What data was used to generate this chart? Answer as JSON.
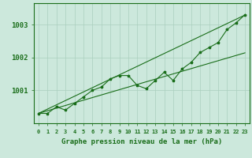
{
  "xlabel": "Graphe pression niveau de la mer (hPa)",
  "hours": [
    0,
    1,
    2,
    3,
    4,
    5,
    6,
    7,
    8,
    9,
    10,
    11,
    12,
    13,
    14,
    15,
    16,
    17,
    18,
    19,
    20,
    21,
    22,
    23
  ],
  "pressure_actual": [
    1000.3,
    1000.3,
    1000.5,
    1000.4,
    1000.6,
    1000.8,
    1001.0,
    1001.1,
    1001.35,
    1001.45,
    1001.45,
    1001.15,
    1001.05,
    1001.3,
    1001.55,
    1001.3,
    1001.65,
    1001.85,
    1002.15,
    1002.3,
    1002.45,
    1002.85,
    1003.05,
    1003.3
  ],
  "pressure_trend1": [
    1000.3,
    1000.43,
    1000.56,
    1000.69,
    1000.82,
    1000.95,
    1001.08,
    1001.21,
    1001.34,
    1001.47,
    1001.6,
    1001.73,
    1001.86,
    1001.99,
    1002.12,
    1002.25,
    1002.38,
    1002.51,
    1002.64,
    1002.77,
    1002.9,
    1003.03,
    1003.16,
    1003.29
  ],
  "pressure_trend2": [
    1000.3,
    1000.38,
    1000.46,
    1000.54,
    1000.62,
    1000.7,
    1000.78,
    1000.86,
    1000.94,
    1001.02,
    1001.1,
    1001.18,
    1001.26,
    1001.34,
    1001.42,
    1001.5,
    1001.58,
    1001.66,
    1001.74,
    1001.82,
    1001.9,
    1001.98,
    1002.06,
    1002.14
  ],
  "ylim_min": 1000.0,
  "ylim_max": 1003.65,
  "yticks": [
    1001,
    1002,
    1003
  ],
  "ytick_labels": [
    "1001",
    "1002",
    "1003"
  ],
  "line_color": "#1a6e1a",
  "bg_color": "#cce8dc",
  "grid_color": "#aacfbe",
  "label_color": "#1a6e1a",
  "xlabel_fontsize": 6.5,
  "ytick_fontsize": 6.5,
  "xtick_fontsize": 5.0
}
